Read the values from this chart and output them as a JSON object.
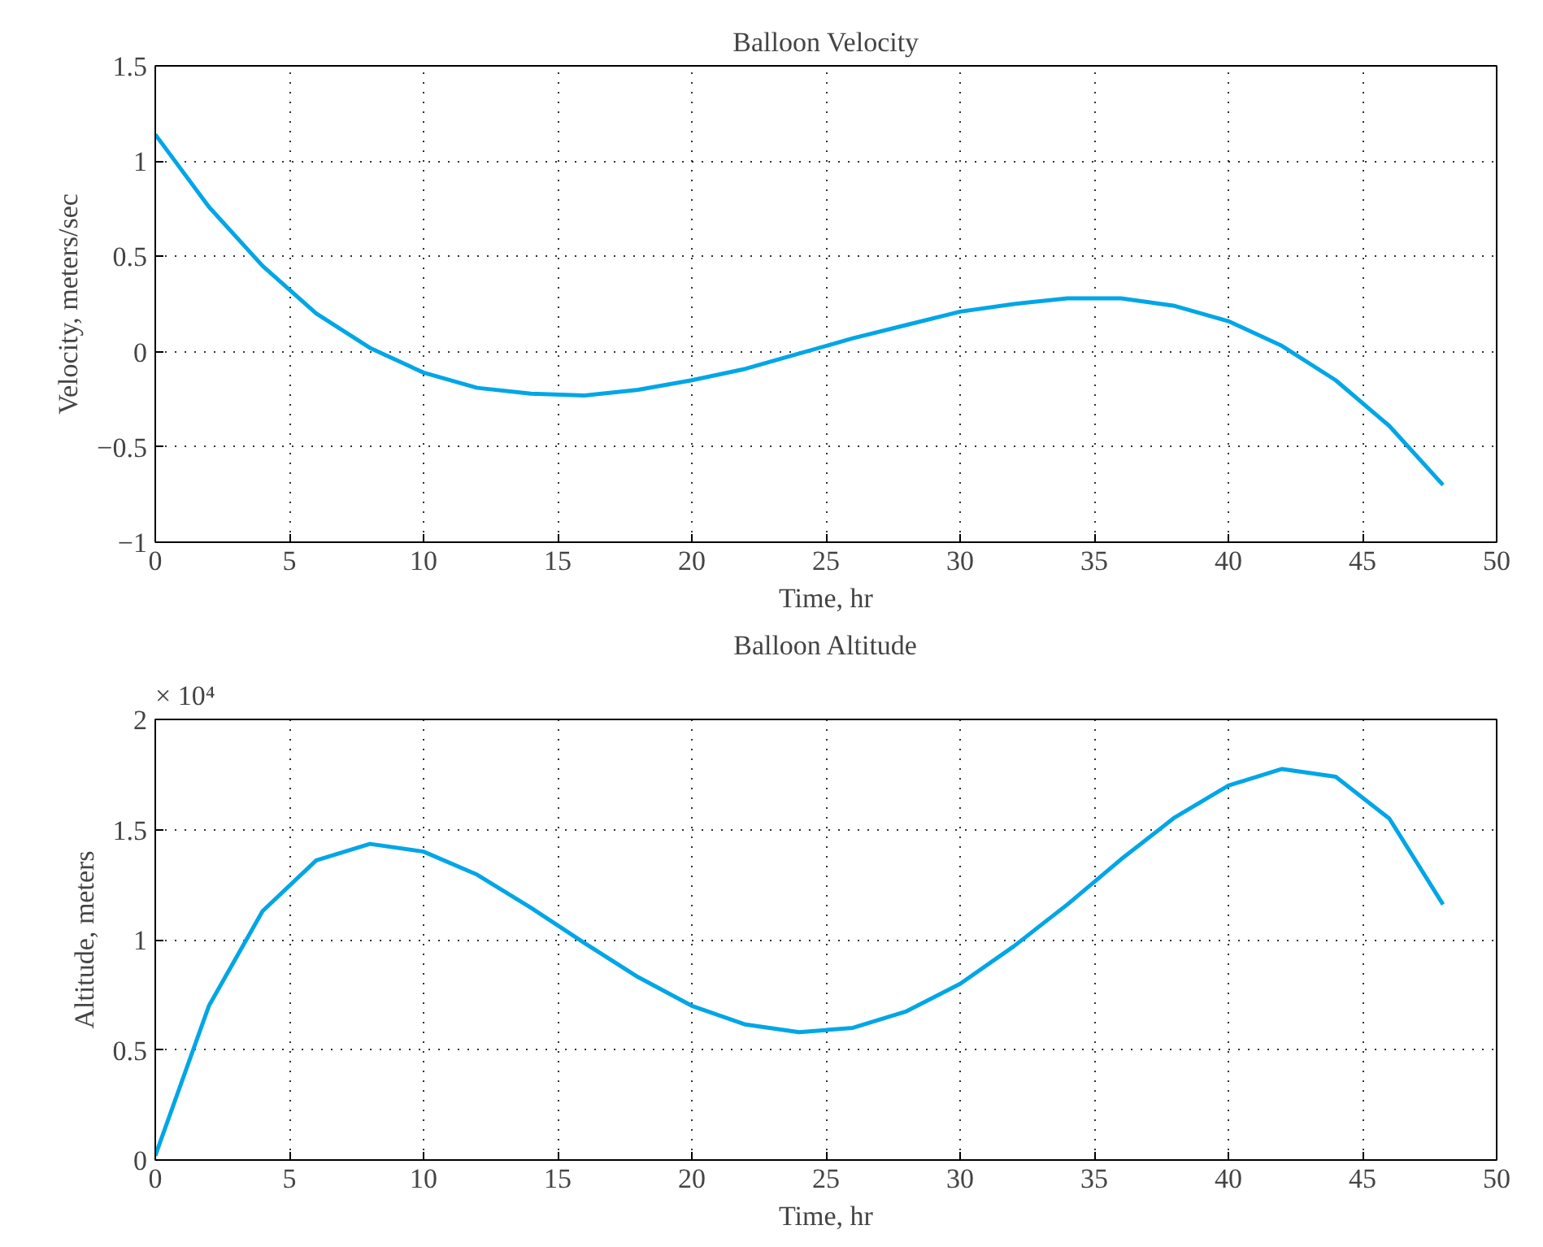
{
  "chart_data": [
    {
      "type": "line",
      "title": "Balloon Velocity",
      "xlabel": "Time, hr",
      "ylabel": "Velocity, meters/sec",
      "x": [
        0,
        2,
        4,
        6,
        8,
        10,
        12,
        14,
        16,
        18,
        20,
        22,
        24,
        26,
        28,
        30,
        32,
        34,
        36,
        38,
        40,
        42,
        44,
        46,
        48
      ],
      "series": [
        {
          "color": "#00a6e6",
          "values": [
            1.14,
            0.76,
            0.45,
            0.2,
            0.02,
            -0.11,
            -0.19,
            -0.22,
            -0.23,
            -0.2,
            -0.15,
            -0.09,
            -0.01,
            0.07,
            0.14,
            0.21,
            0.25,
            0.28,
            0.28,
            0.24,
            0.16,
            0.03,
            -0.15,
            -0.39,
            -0.7
          ]
        }
      ],
      "xlim": [
        0,
        50
      ],
      "xticks": [
        0,
        5,
        10,
        15,
        20,
        25,
        30,
        35,
        40,
        45,
        50
      ],
      "ylim": [
        -1,
        1.5
      ],
      "yticks": [
        -1,
        -0.5,
        0,
        0.5,
        1,
        1.5
      ],
      "grid": true,
      "line_style": "solid"
    },
    {
      "type": "line",
      "title": "Balloon Altitude",
      "xlabel": "Time, hr",
      "ylabel": "Altitude, meters",
      "annotations": [
        "× 10⁴"
      ],
      "x": [
        0,
        2,
        4,
        6,
        8,
        10,
        12,
        14,
        16,
        18,
        20,
        22,
        24,
        26,
        28,
        30,
        32,
        34,
        36,
        38,
        40,
        42,
        44,
        46,
        48
      ],
      "series": [
        {
          "color": "#00a6e6",
          "values": [
            0.02,
            0.7,
            1.13,
            1.36,
            1.435,
            1.4,
            1.295,
            1.145,
            0.985,
            0.83,
            0.7,
            0.615,
            0.58,
            0.6,
            0.675,
            0.8,
            0.97,
            1.16,
            1.365,
            1.555,
            1.7,
            1.775,
            1.74,
            1.55,
            1.16
          ]
        }
      ],
      "xlim": [
        0,
        50
      ],
      "xticks": [
        0,
        5,
        10,
        15,
        20,
        25,
        30,
        35,
        40,
        45,
        50
      ],
      "ylim": [
        0,
        2
      ],
      "yticks": [
        0,
        0.5,
        1,
        1.5,
        2
      ],
      "grid": true,
      "line_style": "solid"
    }
  ]
}
